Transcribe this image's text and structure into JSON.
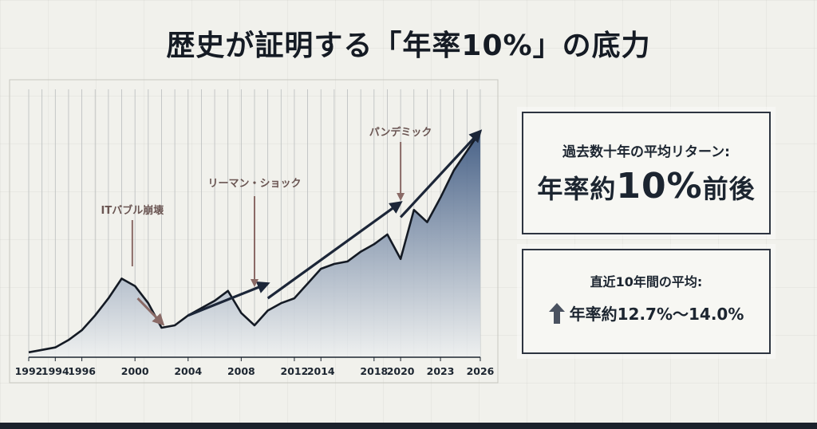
{
  "title": "歴史が証明する「年率10%」の底力",
  "panels": {
    "p1_label": "過去数十年の平均リターン:",
    "p1_prefix": "年率約",
    "p1_big": "10%",
    "p1_suffix": "前後",
    "p2_label": "直近10年間の平均:",
    "p2_value": "年率約12.7%〜14.0%",
    "p2_icon": "arrow-up-icon"
  },
  "colors": {
    "line": "#141a24",
    "fill_top": "#3f5a82",
    "fill_bottom": "#eef0f0",
    "trend_arrow": "#1c2638",
    "event_arrow": "#8a6a66",
    "event_text": "#6a5552"
  },
  "chart_data": {
    "type": "area",
    "title": "",
    "xlabel": "",
    "ylabel": "",
    "x_ticks": [
      "1992",
      "1994",
      "1996",
      "2000",
      "2004",
      "2008",
      "2012",
      "2014",
      "2018",
      "2020",
      "2023",
      "2026"
    ],
    "x_tick_years": [
      1992,
      1994,
      1996,
      2000,
      2004,
      2008,
      2012,
      2014,
      2018,
      2020,
      2023,
      2026
    ],
    "xlim": [
      1992,
      2026
    ],
    "ylim": [
      0,
      100
    ],
    "series": [
      {
        "points": [
          [
            1992,
            2
          ],
          [
            1993,
            3
          ],
          [
            1994,
            4
          ],
          [
            1995,
            7
          ],
          [
            1996,
            11
          ],
          [
            1997,
            17
          ],
          [
            1998,
            24
          ],
          [
            1999,
            32
          ],
          [
            2000,
            29
          ],
          [
            2001,
            22
          ],
          [
            2002,
            12
          ],
          [
            2003,
            13
          ],
          [
            2004,
            17
          ],
          [
            2005,
            20
          ],
          [
            2006,
            23
          ],
          [
            2007,
            27
          ],
          [
            2008,
            18
          ],
          [
            2009,
            13
          ],
          [
            2010,
            19
          ],
          [
            2011,
            22
          ],
          [
            2012,
            24
          ],
          [
            2013,
            30
          ],
          [
            2014,
            36
          ],
          [
            2015,
            38
          ],
          [
            2016,
            39
          ],
          [
            2017,
            43
          ],
          [
            2018,
            46
          ],
          [
            2019,
            50
          ],
          [
            2020,
            40
          ],
          [
            2021,
            60
          ],
          [
            2022,
            55
          ],
          [
            2023,
            65
          ],
          [
            2024,
            76
          ],
          [
            2025,
            84
          ],
          [
            2026,
            92
          ]
        ]
      }
    ],
    "annotations": [
      {
        "label": "ITバブル崩壊",
        "year": 1999.8
      },
      {
        "label": "リーマン・ショック",
        "year": 2009.0
      },
      {
        "label": "パンデミック",
        "year": 2020.0
      }
    ]
  }
}
